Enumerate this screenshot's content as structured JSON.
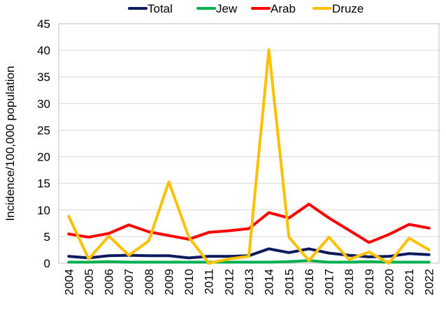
{
  "chart_data": {
    "type": "line",
    "ylabel": "Incidence/100,000 population",
    "xlabel": "",
    "ylim": [
      0,
      45
    ],
    "yticks": [
      0,
      5,
      10,
      15,
      20,
      25,
      30,
      35,
      40,
      45
    ],
    "grid": "horizontal",
    "legend_position": "top",
    "categories": [
      "2004",
      "2005",
      "2006",
      "2007",
      "2008",
      "2009",
      "2010",
      "2011",
      "2012",
      "2013",
      "2014",
      "2015",
      "2016",
      "2017",
      "2018",
      "2019",
      "2020",
      "2021",
      "2022"
    ],
    "series": [
      {
        "name": "Total",
        "color": "#0d1b5e",
        "values": [
          1.3,
          1.0,
          1.4,
          1.5,
          1.4,
          1.4,
          1.0,
          1.3,
          1.3,
          1.4,
          2.7,
          2.0,
          2.7,
          1.9,
          1.5,
          1.2,
          1.3,
          1.8,
          1.6
        ]
      },
      {
        "name": "Jew",
        "color": "#00b050",
        "values": [
          0.2,
          0.2,
          0.3,
          0.2,
          0.2,
          0.2,
          0.2,
          0.2,
          0.2,
          0.2,
          0.2,
          0.3,
          0.5,
          0.2,
          0.2,
          0.3,
          0.2,
          0.2,
          0.2
        ]
      },
      {
        "name": "Arab",
        "color": "#ff0000",
        "values": [
          5.5,
          4.9,
          5.6,
          7.2,
          5.9,
          5.2,
          4.5,
          5.8,
          6.1,
          6.5,
          9.5,
          8.5,
          11.1,
          8.5,
          6.2,
          3.9,
          5.4,
          7.3,
          6.6
        ]
      },
      {
        "name": "Druze",
        "color": "#ffc000",
        "values": [
          8.8,
          0.8,
          5.1,
          1.5,
          4.2,
          15.3,
          4.9,
          0.0,
          0.8,
          1.3,
          40.1,
          4.9,
          0.5,
          4.9,
          0.7,
          2.1,
          0.0,
          4.7,
          2.5
        ]
      }
    ]
  }
}
